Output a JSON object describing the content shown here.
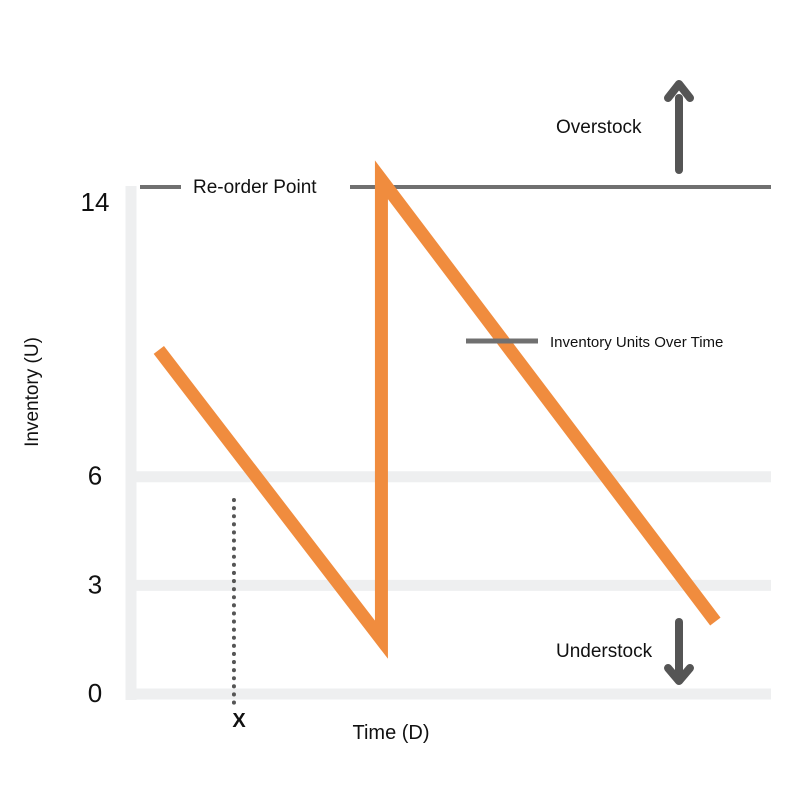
{
  "chart_data": {
    "type": "line",
    "xlabel": "Time (D)",
    "ylabel": "Inventory (U)",
    "y_ticks": [
      {
        "value": 0,
        "label": "0"
      },
      {
        "value": 3,
        "label": "3"
      },
      {
        "value": 6,
        "label": "6"
      },
      {
        "value": 14,
        "label": "14"
      }
    ],
    "ylim": [
      0,
      14
    ],
    "series": [
      {
        "name": "Inventory Units Over Time",
        "color": "#F08C3E",
        "points": [
          {
            "x": 1,
            "y": 9.5
          },
          {
            "x": 9,
            "y": 1.5
          },
          {
            "x": 9,
            "y": 14.2
          },
          {
            "x": 21,
            "y": 2.0
          }
        ]
      }
    ],
    "reorder_point": {
      "label": "Re-order Point",
      "value": 14,
      "color": "#707070"
    },
    "reference_lines": [
      {
        "value": 6,
        "color": "#EEEFF0"
      },
      {
        "value": 3,
        "color": "#EEEFF0"
      }
    ],
    "marker": {
      "label": "X",
      "x": 3.7
    },
    "annotations": [
      {
        "label": "Overstock",
        "direction": "up",
        "icon": "arrow-up-icon"
      },
      {
        "label": "Understock",
        "direction": "down",
        "icon": "arrow-down-icon"
      }
    ],
    "series_label_icon": "legend-line"
  }
}
